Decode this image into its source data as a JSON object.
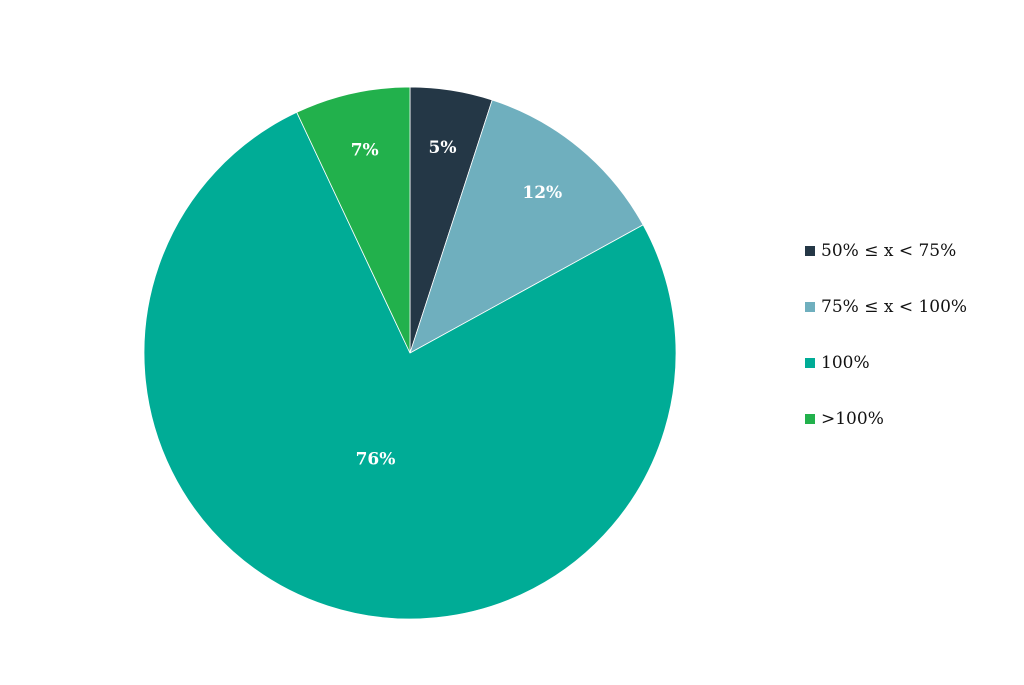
{
  "chart_data": {
    "type": "pie",
    "title": "",
    "slices": [
      {
        "label": "50% ≤ x < 75%",
        "value": 5,
        "display": "5%",
        "color": "#243746"
      },
      {
        "label": "75% ≤ x < 100%",
        "value": 12,
        "display": "12%",
        "color": "#6fafbe"
      },
      {
        "label": "100%",
        "value": 76,
        "display": "76%",
        "color": "#00ac96"
      },
      {
        "label": ">100%",
        "value": 7,
        "display": "7%",
        "color": "#22b14c"
      }
    ],
    "start_angle_deg": 0,
    "direction": "clockwise",
    "legend": {
      "position": "right"
    },
    "data_labels": true
  }
}
